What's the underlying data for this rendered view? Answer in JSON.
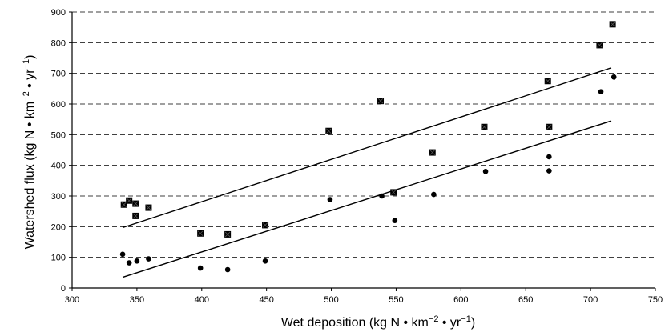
{
  "chart_data": {
    "type": "scatter",
    "title": "",
    "xlabel": "Wet deposition (kg N • km",
    "xlabel_sup1": "−2",
    "xlabel_mid": " • yr",
    "xlabel_sup2": "−1",
    "xlabel_end": ")",
    "ylabel": "Watershed flux (kg N • km",
    "ylabel_sup1": "−2",
    "ylabel_mid": " • yr",
    "ylabel_sup2": "−1",
    "ylabel_end": ")",
    "xlim": [
      300,
      750
    ],
    "ylim": [
      0,
      900
    ],
    "x_ticks": [
      "300",
      "350",
      "400",
      "450",
      "500",
      "550",
      "600",
      "650",
      "700",
      "750"
    ],
    "y_ticks": [
      "0",
      "100",
      "200",
      "300",
      "400",
      "500",
      "600",
      "700",
      "800",
      "900"
    ],
    "grid": "horizontal dashed",
    "series": [
      {
        "marker": "square",
        "color": "#000000",
        "points": [
          {
            "x": 340,
            "y": 272
          },
          {
            "x": 344,
            "y": 285
          },
          {
            "x": 349,
            "y": 275
          },
          {
            "x": 349,
            "y": 235
          },
          {
            "x": 359,
            "y": 262
          },
          {
            "x": 399,
            "y": 178
          },
          {
            "x": 420,
            "y": 175
          },
          {
            "x": 449,
            "y": 205
          },
          {
            "x": 498,
            "y": 512
          },
          {
            "x": 538,
            "y": 610
          },
          {
            "x": 548,
            "y": 312
          },
          {
            "x": 578,
            "y": 442
          },
          {
            "x": 618,
            "y": 525
          },
          {
            "x": 667,
            "y": 675
          },
          {
            "x": 668,
            "y": 525
          },
          {
            "x": 707,
            "y": 792
          },
          {
            "x": 717,
            "y": 860
          }
        ],
        "trendline": [
          [
            339,
            197
          ],
          [
            716,
            718
          ]
        ]
      },
      {
        "marker": "circle",
        "color": "#000000",
        "points": [
          {
            "x": 339,
            "y": 110
          },
          {
            "x": 344,
            "y": 82
          },
          {
            "x": 350,
            "y": 88
          },
          {
            "x": 359,
            "y": 95
          },
          {
            "x": 399,
            "y": 65
          },
          {
            "x": 420,
            "y": 60
          },
          {
            "x": 449,
            "y": 88
          },
          {
            "x": 499,
            "y": 288
          },
          {
            "x": 539,
            "y": 300
          },
          {
            "x": 549,
            "y": 220
          },
          {
            "x": 579,
            "y": 305
          },
          {
            "x": 619,
            "y": 380
          },
          {
            "x": 668,
            "y": 428
          },
          {
            "x": 668,
            "y": 382
          },
          {
            "x": 708,
            "y": 640
          },
          {
            "x": 718,
            "y": 688
          }
        ],
        "trendline": [
          [
            339,
            35
          ],
          [
            716,
            545
          ]
        ]
      }
    ]
  }
}
